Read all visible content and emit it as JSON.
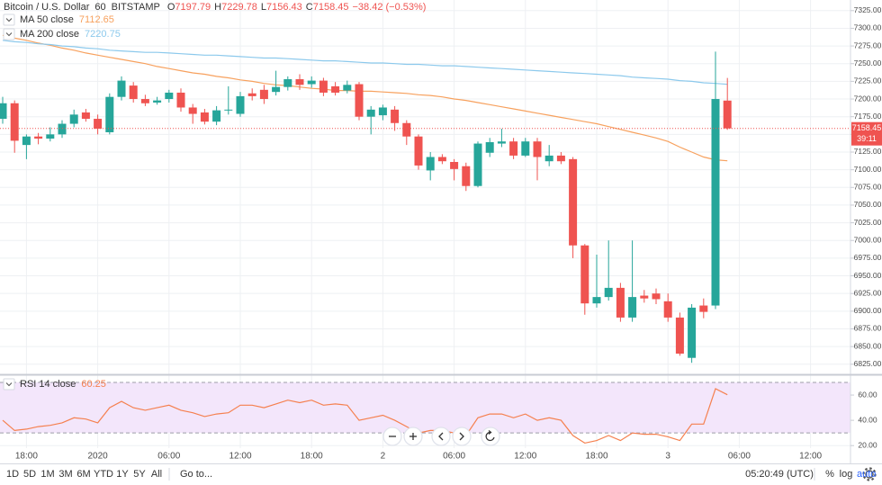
{
  "chart_data": [
    {
      "type": "candlestick",
      "title": "Bitcoin / U.S. Dollar",
      "interval": "60",
      "exchange": "BITSTAMP",
      "ohlc_prefixes": [
        "O",
        "H",
        "L",
        "C"
      ],
      "change_label": "−38.42 (−0.53%)",
      "countdown": "39:11",
      "up_color": "#26a69a",
      "down_color": "#ef5350",
      "grid": true,
      "categories": [
        null,
        null,
        "18:00",
        null,
        null,
        null,
        null,
        null,
        "2020",
        null,
        null,
        null,
        null,
        null,
        "06:00",
        null,
        null,
        null,
        null,
        null,
        "12:00",
        null,
        null,
        null,
        null,
        null,
        "18:00",
        null,
        null,
        null,
        null,
        null,
        "2",
        null,
        null,
        null,
        null,
        null,
        "06:00",
        null,
        null,
        null,
        null,
        null,
        "12:00",
        null,
        null,
        null,
        null,
        null,
        "18:00",
        null,
        null,
        null,
        null,
        null,
        "3",
        null,
        null,
        null,
        null,
        null,
        "06:00",
        null,
        null,
        null,
        null,
        null,
        "12:00"
      ],
      "open": [
        7172,
        7194,
        7135,
        7147,
        7144,
        7150,
        7165,
        7181,
        7172,
        7153,
        7203,
        7219,
        7200,
        7195,
        7200,
        7209,
        7188,
        7181,
        7168,
        7184,
        7179,
        7208,
        7213,
        7210,
        7217,
        7228,
        7221,
        7226,
        7218,
        7212,
        7221,
        7175,
        7177,
        7185,
        7166,
        7147,
        7099,
        7118,
        7111,
        7105,
        7077,
        7124,
        7137,
        7140,
        7120,
        7140,
        7112,
        7120,
        7115,
        6993,
        6911,
        6920,
        6933,
        6891,
        6922,
        6925,
        6914,
        6891,
        6834,
        6908,
        6908,
        7197.79,
        null,
        null,
        null,
        null,
        null,
        null,
        null
      ],
      "high": [
        7203,
        7198,
        7150,
        7152,
        7160,
        7170,
        7185,
        7186,
        7178,
        7208,
        7232,
        7224,
        7206,
        7203,
        7213,
        7215,
        7193,
        7186,
        7190,
        7218,
        7210,
        7215,
        7220,
        7240,
        7232,
        7235,
        7232,
        7230,
        7224,
        7226,
        7224,
        7190,
        7192,
        7190,
        7170,
        7150,
        7125,
        7122,
        7115,
        7110,
        7140,
        7145,
        7158,
        7145,
        7145,
        7145,
        7135,
        7125,
        7118,
        6995,
        6980,
        7000,
        6940,
        7000,
        6930,
        6932,
        6925,
        6898,
        6910,
        6918,
        7267,
        7229.78,
        null,
        null,
        null,
        null,
        null,
        null,
        null
      ],
      "low": [
        7165,
        7124,
        7115,
        7136,
        7140,
        7145,
        7160,
        7168,
        7150,
        7150,
        7198,
        7195,
        7190,
        7192,
        7195,
        7182,
        7165,
        7164,
        7163,
        7178,
        7175,
        7198,
        7193,
        7205,
        7212,
        7213,
        7216,
        7204,
        7205,
        7208,
        7170,
        7150,
        7170,
        7155,
        7135,
        7100,
        7085,
        7108,
        7085,
        7070,
        7075,
        7118,
        7132,
        7115,
        7118,
        7085,
        7105,
        7108,
        6975,
        6895,
        6905,
        6915,
        6885,
        6885,
        6912,
        6910,
        6885,
        6837,
        6827,
        6890,
        6903,
        7156.43,
        null,
        null,
        null,
        null,
        null,
        null,
        null
      ],
      "close": [
        7194,
        7141,
        7147,
        7144,
        7150,
        7165,
        7178,
        7172,
        7158,
        7203,
        7226,
        7200,
        7194,
        7198,
        7209,
        7188,
        7179,
        7168,
        7184,
        7185,
        7204,
        7204,
        7200,
        7217,
        7228,
        7220,
        7226,
        7209,
        7209,
        7220,
        7175,
        7185,
        7188,
        7166,
        7147,
        7106,
        7118,
        7112,
        7101,
        7077,
        7137,
        7139,
        7140,
        7120,
        7140,
        7118,
        7120,
        7112,
        6993,
        6911,
        6920,
        6933,
        6891,
        6920,
        6918,
        6917,
        6891,
        6840,
        6905,
        6899,
        7200,
        7158.45,
        null,
        null,
        null,
        null,
        null,
        null,
        null
      ],
      "series": [
        {
          "name": "MA 50 close",
          "color": "#f7a15e",
          "values": [
            7290,
            7286,
            7283,
            7279,
            7276,
            7272,
            7269,
            7265,
            7262,
            7259,
            7256,
            7253,
            7250,
            7246,
            7243,
            7240,
            7237,
            7235,
            7232,
            7230,
            7227,
            7225,
            7222,
            7220,
            7219,
            7217,
            7215,
            7214,
            7212,
            7212,
            7211,
            7211,
            7210,
            7209,
            7208,
            7206,
            7205,
            7203,
            7200,
            7198,
            7195,
            7192,
            7189,
            7186,
            7183,
            7180,
            7177,
            7174,
            7171,
            7168,
            7165,
            7161,
            7157,
            7153,
            7149,
            7145,
            7140,
            7132,
            7125,
            7118,
            7114,
            7112.65,
            null,
            null,
            null,
            null,
            null,
            null,
            null
          ]
        },
        {
          "name": "MA 200 close",
          "color": "#8cc9ec",
          "values": [
            7283,
            7281,
            7280,
            7278,
            7277,
            7275,
            7274,
            7272,
            7271,
            7269,
            7268,
            7267,
            7266,
            7266,
            7265,
            7264,
            7263,
            7262,
            7262,
            7261,
            7260,
            7259,
            7258,
            7258,
            7257,
            7256,
            7255,
            7254,
            7254,
            7253,
            7252,
            7251,
            7251,
            7250,
            7249,
            7249,
            7248,
            7247,
            7247,
            7246,
            7245,
            7244,
            7243,
            7242,
            7241,
            7240,
            7239,
            7238,
            7237,
            7236,
            7235,
            7234,
            7233,
            7231,
            7230,
            7229,
            7228,
            7226,
            7225,
            7223,
            7222,
            7220.75,
            null,
            null,
            null,
            null,
            null,
            null,
            null
          ]
        }
      ],
      "ylim": [
        6812,
        7340
      ],
      "yticks": [
        {
          "value": 6825,
          "label": "6825.00"
        },
        {
          "value": 6850,
          "label": "6850.00"
        },
        {
          "value": 6875,
          "label": "6875.00"
        },
        {
          "value": 6900,
          "label": "6900.00"
        },
        {
          "value": 6925,
          "label": "6925.00"
        },
        {
          "value": 6950,
          "label": "6950.00"
        },
        {
          "value": 6975,
          "label": "6975.00"
        },
        {
          "value": 7000,
          "label": "7000.00"
        },
        {
          "value": 7025,
          "label": "7025.00"
        },
        {
          "value": 7050,
          "label": "7050.00"
        },
        {
          "value": 7075,
          "label": "7075.00"
        },
        {
          "value": 7100,
          "label": "7100.00"
        },
        {
          "value": 7125,
          "label": "7125.00"
        },
        {
          "value": 7150,
          "label": "7150.00"
        },
        {
          "value": 7175,
          "label": "7175.00"
        },
        {
          "value": 7200,
          "label": "7200.00"
        },
        {
          "value": 7225,
          "label": "7225.00"
        },
        {
          "value": 7250,
          "label": "7250.00"
        },
        {
          "value": 7275,
          "label": "7275.00"
        },
        {
          "value": 7300,
          "label": "7300.00"
        },
        {
          "value": 7325,
          "label": "7325.00"
        }
      ]
    },
    {
      "type": "line",
      "band": [
        30,
        70
      ],
      "band_color": "#f3e6fb",
      "grid": true,
      "series": [
        {
          "name": "RSI 14 close",
          "color": "#f5804f",
          "values": [
            40,
            32,
            33,
            35,
            36,
            38,
            42,
            41,
            38,
            50,
            55,
            50,
            48,
            50,
            52,
            48,
            46,
            43,
            45,
            46,
            52,
            52,
            50,
            53,
            56,
            54,
            56,
            52,
            53,
            52,
            40,
            42,
            44,
            40,
            35,
            30,
            32,
            32,
            30,
            28,
            42,
            45,
            45,
            42,
            45,
            40,
            42,
            40,
            28,
            22,
            24,
            28,
            24,
            30,
            29,
            29,
            27,
            24,
            37,
            37,
            65,
            60.25,
            null,
            null,
            null,
            null,
            null,
            null,
            null
          ]
        }
      ],
      "ylim": [
        18,
        75
      ],
      "yticks": [
        {
          "value": 20,
          "label": "20.00"
        },
        {
          "value": 40,
          "label": "40.00"
        },
        {
          "value": 60,
          "label": "60.00"
        }
      ]
    }
  ],
  "toolbar": {
    "ranges": [
      "1D",
      "5D",
      "1M",
      "3M",
      "6M",
      "YTD",
      "1Y",
      "5Y",
      "All"
    ],
    "goto": "Go to...",
    "clock": "05:20:49 (UTC)",
    "percent": "%",
    "log": "log",
    "auto": "auto"
  }
}
